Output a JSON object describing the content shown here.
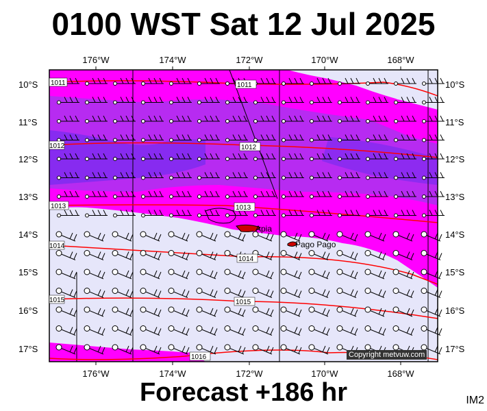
{
  "title": "0100 WST Sat 12 Jul 2025",
  "footer": "Forecast +186 hr",
  "map_code": "IM2",
  "copyright": "Copyright metvuw.com",
  "longitude_labels": [
    "176°W",
    "174°W",
    "172°W",
    "170°W",
    "168°W"
  ],
  "latitude_labels": [
    "10°S",
    "11°S",
    "12°S",
    "13°S",
    "14°S",
    "15°S",
    "16°S",
    "17°S"
  ],
  "places": [
    {
      "name": "Apia",
      "color": "#cc0000"
    },
    {
      "name": "Pago Pago",
      "color": "#cc0000"
    }
  ],
  "isobars": [
    "1011",
    "1012",
    "1013",
    "1014",
    "1015",
    "1016"
  ],
  "colors": {
    "sea_calm": "#e6e6fa",
    "wind_strong": "#ff00ff",
    "wind_stronger": "#aa33ee",
    "wind_strongest": "#7a2cf0",
    "isobar": "#ff0000",
    "land": "#cc0000"
  }
}
